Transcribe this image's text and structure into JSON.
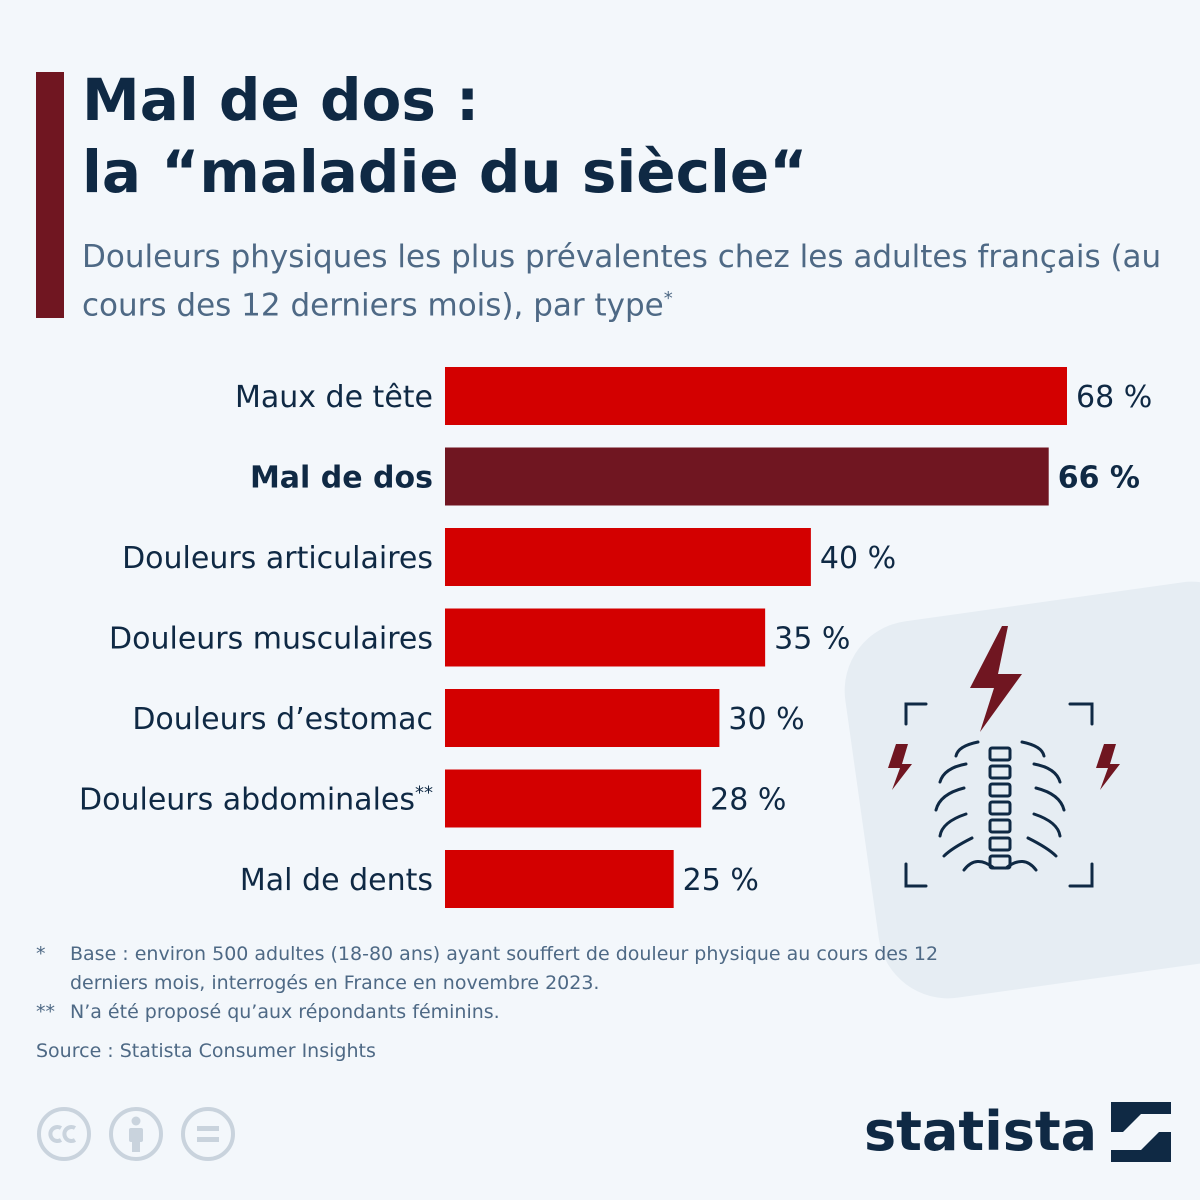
{
  "header": {
    "title": "Mal de dos :\nla “maladie du siècle“",
    "subtitle": "Douleurs physiques les plus prévalentes chez les adultes français (au cours des 12 derniers mois), par type",
    "subtitle_mark": "*"
  },
  "colors": {
    "accent": "#701621",
    "bar": "#d30000",
    "highlight": "#701621",
    "text": "#0f2944",
    "muted": "#4e6985"
  },
  "chart_data": {
    "type": "bar",
    "orientation": "horizontal",
    "categories": [
      "Maux de tête",
      "Mal de dos",
      "Douleurs articulaires",
      "Douleurs musculaires",
      "Douleurs d’estomac",
      "Douleurs abdominales**",
      "Mal de dents"
    ],
    "values": [
      68,
      66,
      40,
      35,
      30,
      28,
      25
    ],
    "value_labels": [
      "68 %",
      "66 %",
      "40 %",
      "35 %",
      "30 %",
      "28 %",
      "25 %"
    ],
    "highlight_index": 1,
    "xlim": [
      0,
      68
    ],
    "unit": "%",
    "grid": false
  },
  "footnotes": [
    {
      "mark": "*",
      "text": "Base : environ 500 adultes (18-80 ans) ayant souffert de douleur physique au cours des 12 derniers mois, interrogés en France en novembre 2023."
    },
    {
      "mark": "**",
      "text": "N’a été proposé qu’aux répondants féminins."
    }
  ],
  "source": "Source : Statista Consumer Insights",
  "icons": [
    "lightning-icon",
    "xray-chest-icon",
    "cc-icon",
    "attribution-icon",
    "no-derivatives-icon",
    "statista-logo-icon"
  ],
  "brand": "statista"
}
